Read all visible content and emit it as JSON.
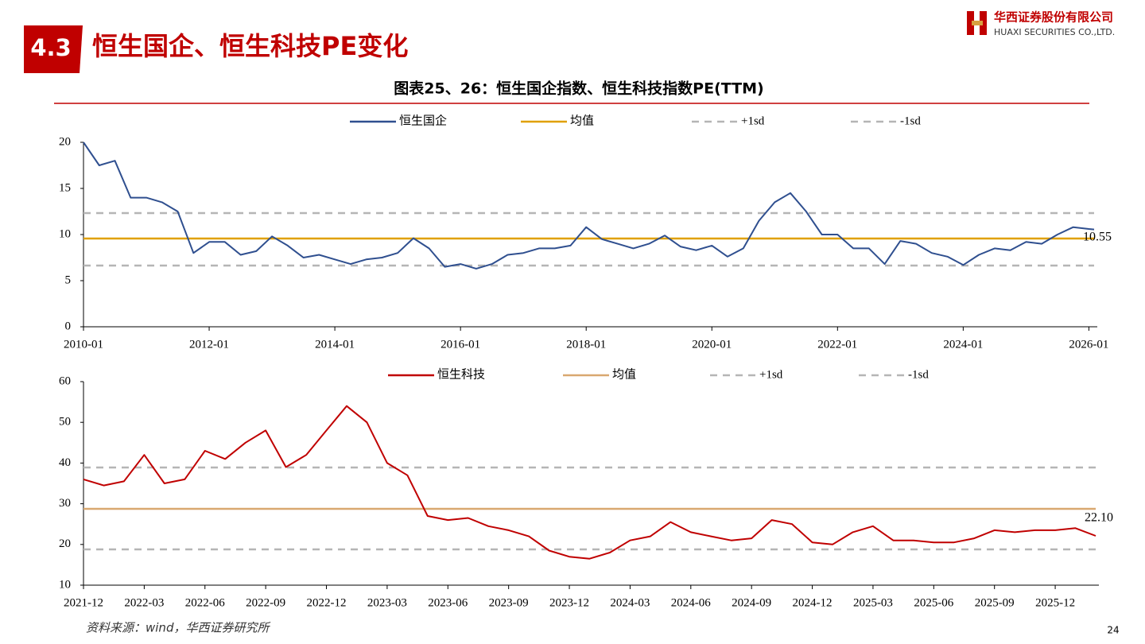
{
  "header": {
    "section": "4.3",
    "title": "恒生国企、恒生科技PE变化",
    "company_cn": "华西证券股份有限公司",
    "company_en": "HUAXI SECURITIES CO.,LTD.",
    "figure_title": "图表25、26：恒生国企指数、恒生科技指数PE(TTM)"
  },
  "chart_data": [
    {
      "type": "line",
      "x": [
        "2010-01",
        "2010-04",
        "2010-07",
        "2010-10",
        "2011-01",
        "2011-04",
        "2011-07",
        "2011-10",
        "2012-01",
        "2012-04",
        "2012-07",
        "2012-10",
        "2013-01",
        "2013-04",
        "2013-07",
        "2013-10",
        "2014-01",
        "2014-04",
        "2014-07",
        "2014-10",
        "2015-01",
        "2015-04",
        "2015-07",
        "2015-10",
        "2016-01",
        "2016-04",
        "2016-07",
        "2016-10",
        "2017-01",
        "2017-04",
        "2017-07",
        "2017-10",
        "2018-01",
        "2018-04",
        "2018-07",
        "2018-10",
        "2019-01",
        "2019-04",
        "2019-07",
        "2019-10",
        "2020-01",
        "2020-04",
        "2020-07",
        "2020-10",
        "2021-01",
        "2021-04",
        "2021-07",
        "2021-10",
        "2022-01",
        "2022-04",
        "2022-07",
        "2022-10",
        "2023-01",
        "2023-04",
        "2023-07",
        "2023-10",
        "2024-01",
        "2024-04",
        "2024-07",
        "2024-10",
        "2025-01",
        "2025-04",
        "2025-07",
        "2025-10",
        "2026-01",
        "2026-02"
      ],
      "series": [
        {
          "name": "恒生国企",
          "color": "#2f4f8f",
          "values": [
            20,
            17.5,
            18,
            14,
            14,
            13.5,
            12.5,
            8,
            9.2,
            9.2,
            7.8,
            8.2,
            9.8,
            8.8,
            7.5,
            7.8,
            7.3,
            6.8,
            7.3,
            7.5,
            8.0,
            9.6,
            8.5,
            6.5,
            6.8,
            6.3,
            6.8,
            7.8,
            8.0,
            8.5,
            8.5,
            8.8,
            10.8,
            9.5,
            9.0,
            8.5,
            9.0,
            9.9,
            8.7,
            8.3,
            8.8,
            7.6,
            8.5,
            11.5,
            13.5,
            14.5,
            12.5,
            10.0,
            10.0,
            8.5,
            8.5,
            6.8,
            9.3,
            9.0,
            8.0,
            7.6,
            6.7,
            7.8,
            8.5,
            8.3,
            9.2,
            9.0,
            10.0,
            10.8,
            10.6,
            10.55
          ]
        }
      ],
      "ref_lines": [
        {
          "name": "均值",
          "color": "#e0a000",
          "value": 9.57,
          "dashed": false
        },
        {
          "name": "+1sd",
          "color": "#b5b5b5",
          "value": 12.33,
          "dashed": true
        },
        {
          "name": "-1sd",
          "color": "#b5b5b5",
          "value": 6.64,
          "dashed": true
        }
      ],
      "label_last": true,
      "xlim": [
        "2010-01",
        "2026-02"
      ],
      "xticks": [
        "2010-01",
        "2012-01",
        "2014-01",
        "2016-01",
        "2018-01",
        "2020-01",
        "2022-01",
        "2024-01",
        "2026-01"
      ],
      "ylim": [
        0,
        20
      ],
      "yticks": [
        0,
        5,
        10,
        15,
        20
      ],
      "grid": false
    },
    {
      "type": "line",
      "x": [
        "2021-12",
        "2022-01",
        "2022-02",
        "2022-03",
        "2022-04",
        "2022-05",
        "2022-06",
        "2022-07",
        "2022-08",
        "2022-09",
        "2022-10",
        "2022-11",
        "2022-12",
        "2023-01",
        "2023-02",
        "2023-03",
        "2023-04",
        "2023-05",
        "2023-06",
        "2023-07",
        "2023-08",
        "2023-09",
        "2023-10",
        "2023-11",
        "2023-12",
        "2024-01",
        "2024-02",
        "2024-03",
        "2024-04",
        "2024-05",
        "2024-06",
        "2024-07",
        "2024-08",
        "2024-09",
        "2024-10",
        "2024-11",
        "2024-12",
        "2025-01",
        "2025-02",
        "2025-03",
        "2025-04",
        "2025-05",
        "2025-06",
        "2025-07",
        "2025-08",
        "2025-09",
        "2025-10",
        "2025-11",
        "2025-12",
        "2026-01",
        "2026-02"
      ],
      "series": [
        {
          "name": "恒生科技",
          "color": "#c00000",
          "values": [
            36,
            34.5,
            35.5,
            42,
            35,
            36,
            43,
            41,
            45,
            48,
            39,
            42,
            48,
            54,
            50,
            40,
            37,
            27,
            26,
            26.5,
            24.5,
            23.5,
            22,
            18.5,
            17,
            16.5,
            18,
            21,
            22,
            25.5,
            23,
            22,
            21,
            21.5,
            26,
            25,
            20.5,
            20,
            23,
            24.5,
            21,
            21,
            20.5,
            20.5,
            21.5,
            23.5,
            23,
            23.5,
            23.5,
            24,
            22.1
          ],
          "value_labels": [
            null,
            null,
            null,
            null,
            null,
            null,
            null,
            null,
            null,
            null,
            null,
            null,
            null,
            null,
            null,
            null,
            null,
            null,
            null,
            null,
            null,
            null,
            null,
            null,
            null,
            null,
            null,
            null,
            null,
            null,
            null,
            null,
            null,
            null,
            null,
            null,
            null,
            null,
            null,
            null,
            null,
            null,
            null,
            null,
            null,
            null,
            null,
            null,
            null,
            null,
            "22.10"
          ]
        }
      ],
      "ref_lines": [
        {
          "name": "均值",
          "color": "#d9a870",
          "value": 28.75,
          "dashed": false
        },
        {
          "name": "+1sd",
          "color": "#b5b5b5",
          "value": 38.9,
          "dashed": true
        },
        {
          "name": "-1sd",
          "color": "#b5b5b5",
          "value": 18.8,
          "dashed": true
        }
      ],
      "label_last": true,
      "xlim": [
        "2021-12",
        "2026-02"
      ],
      "xticks": [
        "2021-12",
        "2022-03",
        "2022-06",
        "2022-09",
        "2022-12",
        "2023-03",
        "2023-06",
        "2023-09",
        "2023-12",
        "2024-03",
        "2024-06",
        "2024-09",
        "2024-12",
        "2025-03",
        "2025-06",
        "2025-09",
        "2025-12"
      ],
      "ylim": [
        10,
        60
      ],
      "yticks": [
        10,
        20,
        30,
        40,
        50,
        60
      ],
      "grid": false
    }
  ],
  "source": "资料来源：wind，华西证券研究所",
  "page_number": 24
}
